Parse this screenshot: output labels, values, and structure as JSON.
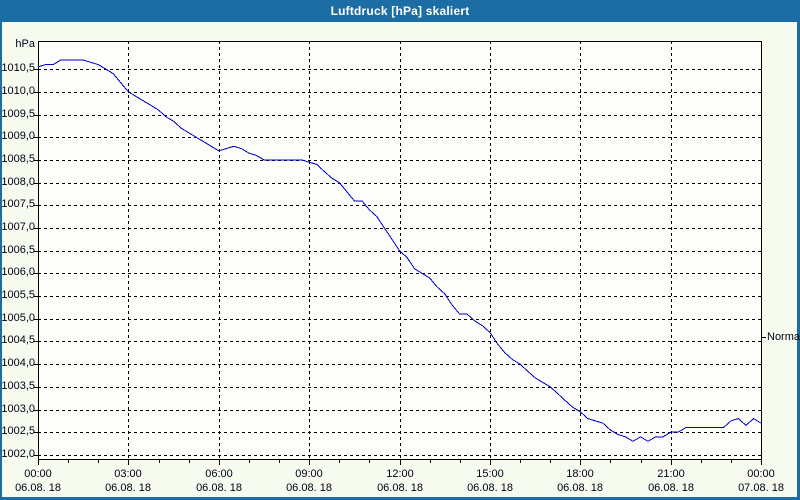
{
  "window": {
    "title": "Luftdruck [hPa] skaliert"
  },
  "colors": {
    "titlebar_bg": "#1d6da5",
    "window_border": "#1d6da5",
    "outer_bg": "#f7faef",
    "plot_bg": "#fdfefa",
    "grid": "#000000",
    "axis_text": "#000014",
    "title_text": "#ffffff",
    "series_line": "#0000cc"
  },
  "labels": {
    "y_unit": "hPa",
    "normal_marker": "Normal"
  },
  "chart_data": {
    "type": "line",
    "title": "Luftdruck [hPa] skaliert",
    "ylabel": "hPa",
    "xlabel": "",
    "grid": "dashed",
    "xlim_hours": [
      0,
      24
    ],
    "ylim": [
      1001.91,
      1011.12
    ],
    "x_ticks": [
      {
        "hour": 0,
        "time": "00:00",
        "date": "06.08. 18"
      },
      {
        "hour": 3,
        "time": "03:00",
        "date": "06.08. 18"
      },
      {
        "hour": 6,
        "time": "06:00",
        "date": "06.08. 18"
      },
      {
        "hour": 9,
        "time": "09:00",
        "date": "06.08. 18"
      },
      {
        "hour": 12,
        "time": "12:00",
        "date": "06.08. 18"
      },
      {
        "hour": 15,
        "time": "15:00",
        "date": "06.08. 18"
      },
      {
        "hour": 18,
        "time": "18:00",
        "date": "06.08. 18"
      },
      {
        "hour": 21,
        "time": "21:00",
        "date": "06.08. 18"
      },
      {
        "hour": 24,
        "time": "00:00",
        "date": "07.08. 18"
      }
    ],
    "y_ticks": [
      {
        "value": 1010.5,
        "label": "1010,5"
      },
      {
        "value": 1010.0,
        "label": "1010,0"
      },
      {
        "value": 1009.5,
        "label": "1009,5"
      },
      {
        "value": 1009.0,
        "label": "1009,0"
      },
      {
        "value": 1008.5,
        "label": "1008,5"
      },
      {
        "value": 1008.0,
        "label": "1008,0"
      },
      {
        "value": 1007.5,
        "label": "1007,5"
      },
      {
        "value": 1007.0,
        "label": "1007,0"
      },
      {
        "value": 1006.5,
        "label": "1006,5"
      },
      {
        "value": 1006.0,
        "label": "1006,0"
      },
      {
        "value": 1005.5,
        "label": "1005,5"
      },
      {
        "value": 1005.0,
        "label": "1005,0"
      },
      {
        "value": 1004.5,
        "label": "1004,5"
      },
      {
        "value": 1004.0,
        "label": "1004,0"
      },
      {
        "value": 1003.5,
        "label": "1003,5"
      },
      {
        "value": 1003.0,
        "label": "1003,0"
      },
      {
        "value": 1002.5,
        "label": "1002,5"
      },
      {
        "value": 1002.0,
        "label": "1002,0"
      }
    ],
    "annotations": [
      {
        "label": "Normal",
        "value": 1004.6,
        "position": "right-axis"
      }
    ],
    "series": [
      {
        "name": "Luftdruck",
        "color": "#0000cc",
        "start_hour": 0,
        "step_hours": 0.25,
        "values": [
          1010.55,
          1010.6,
          1010.6,
          1010.7,
          1010.7,
          1010.7,
          1010.7,
          1010.65,
          1010.6,
          1010.5,
          1010.4,
          1010.2,
          1010.0,
          1009.9,
          1009.8,
          1009.7,
          1009.6,
          1009.45,
          1009.35,
          1009.2,
          1009.1,
          1009.0,
          1008.9,
          1008.8,
          1008.7,
          1008.75,
          1008.8,
          1008.75,
          1008.65,
          1008.6,
          1008.5,
          1008.5,
          1008.5,
          1008.5,
          1008.5,
          1008.5,
          1008.45,
          1008.4,
          1008.25,
          1008.1,
          1008.0,
          1007.8,
          1007.6,
          1007.6,
          1007.4,
          1007.25,
          1007.0,
          1006.75,
          1006.5,
          1006.35,
          1006.1,
          1006.0,
          1005.9,
          1005.7,
          1005.55,
          1005.3,
          1005.1,
          1005.1,
          1004.95,
          1004.85,
          1004.7,
          1004.45,
          1004.25,
          1004.1,
          1004.0,
          1003.85,
          1003.7,
          1003.6,
          1003.5,
          1003.35,
          1003.2,
          1003.05,
          1002.95,
          1002.8,
          1002.75,
          1002.7,
          1002.55,
          1002.45,
          1002.4,
          1002.3,
          1002.4,
          1002.3,
          1002.4,
          1002.4,
          1002.5,
          1002.5,
          1002.6,
          1002.6,
          1002.6,
          1002.6,
          1002.6,
          1002.6,
          1002.75,
          1002.8,
          1002.65,
          1002.8,
          1002.7
        ]
      }
    ]
  }
}
